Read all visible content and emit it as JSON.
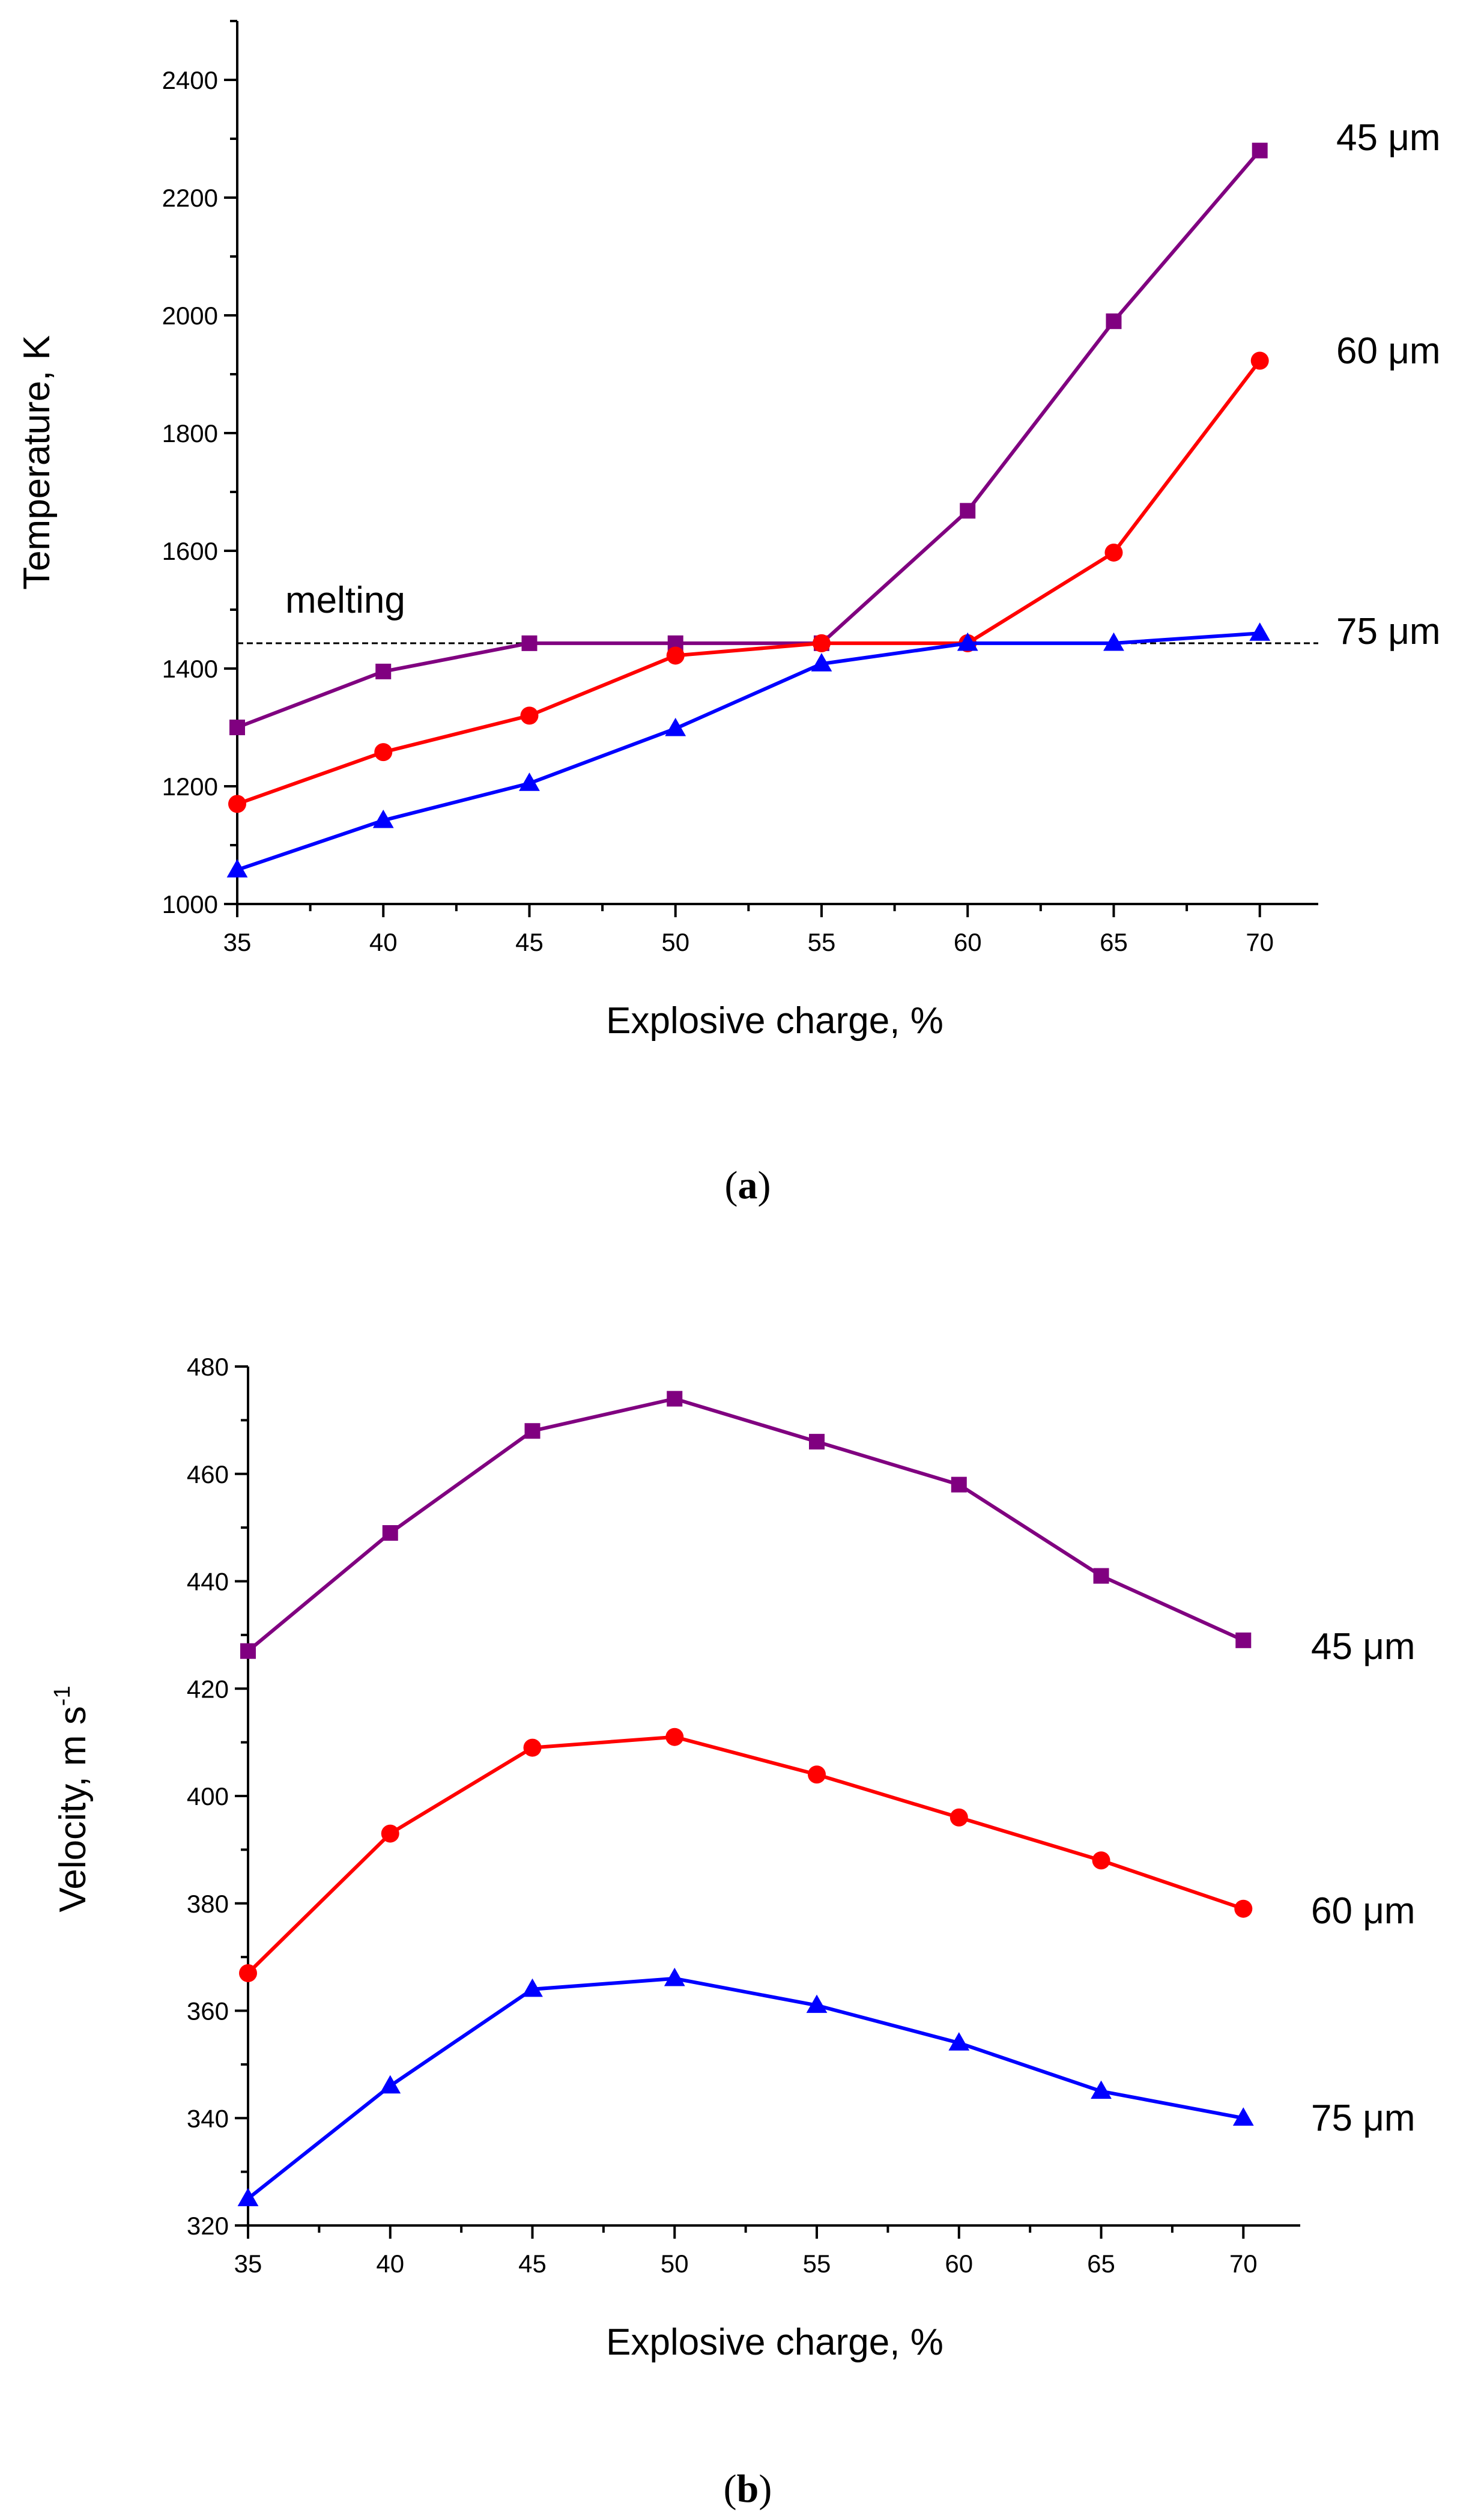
{
  "chart_data": [
    {
      "type": "line",
      "panel": "a",
      "xlabel": "Explosive charge, %",
      "ylabel": "Temperature, K",
      "x": [
        35,
        40,
        45,
        50,
        55,
        60,
        65,
        70
      ],
      "xlim": [
        35,
        72
      ],
      "ylim": [
        1000,
        2500
      ],
      "xticks": [
        35,
        40,
        45,
        50,
        55,
        60,
        65,
        70
      ],
      "yticks": [
        1000,
        1200,
        1400,
        1600,
        1800,
        2000,
        2200,
        2400
      ],
      "reference_line": {
        "label": "melting",
        "y": 1443
      },
      "series": [
        {
          "name": "45 μm",
          "color": "#800080",
          "marker": "square",
          "values": [
            1300,
            1395,
            1443,
            1443,
            1443,
            1668,
            1990,
            2280
          ]
        },
        {
          "name": "60 μm",
          "color": "#ff0000",
          "marker": "circle",
          "values": [
            1170,
            1258,
            1320,
            1422,
            1443,
            1443,
            1597,
            1923
          ]
        },
        {
          "name": "75 μm",
          "color": "#0000ff",
          "marker": "triangle",
          "values": [
            1058,
            1142,
            1205,
            1298,
            1408,
            1443,
            1443,
            1460
          ]
        }
      ]
    },
    {
      "type": "line",
      "panel": "b",
      "xlabel": "Explosive charge, %",
      "ylabel": "Velocity, m s",
      "ylabel_superscript": "-1",
      "x": [
        35,
        40,
        45,
        50,
        55,
        60,
        65,
        70
      ],
      "xlim": [
        35,
        72
      ],
      "ylim": [
        320,
        480
      ],
      "xticks": [
        35,
        40,
        45,
        50,
        55,
        60,
        65,
        70
      ],
      "yticks": [
        320,
        340,
        360,
        380,
        400,
        420,
        440,
        460,
        480
      ],
      "series": [
        {
          "name": "45 μm",
          "color": "#800080",
          "marker": "square",
          "values": [
            427,
            449,
            468,
            474,
            466,
            458,
            441,
            429
          ]
        },
        {
          "name": "60 μm",
          "color": "#ff0000",
          "marker": "circle",
          "values": [
            367,
            393,
            409,
            411,
            404,
            396,
            388,
            379
          ]
        },
        {
          "name": "75 μm",
          "color": "#0000ff",
          "marker": "triangle",
          "values": [
            325,
            346,
            364,
            366,
            361,
            354,
            345,
            340
          ]
        }
      ]
    }
  ],
  "captions": {
    "a": "a",
    "b": "b"
  }
}
